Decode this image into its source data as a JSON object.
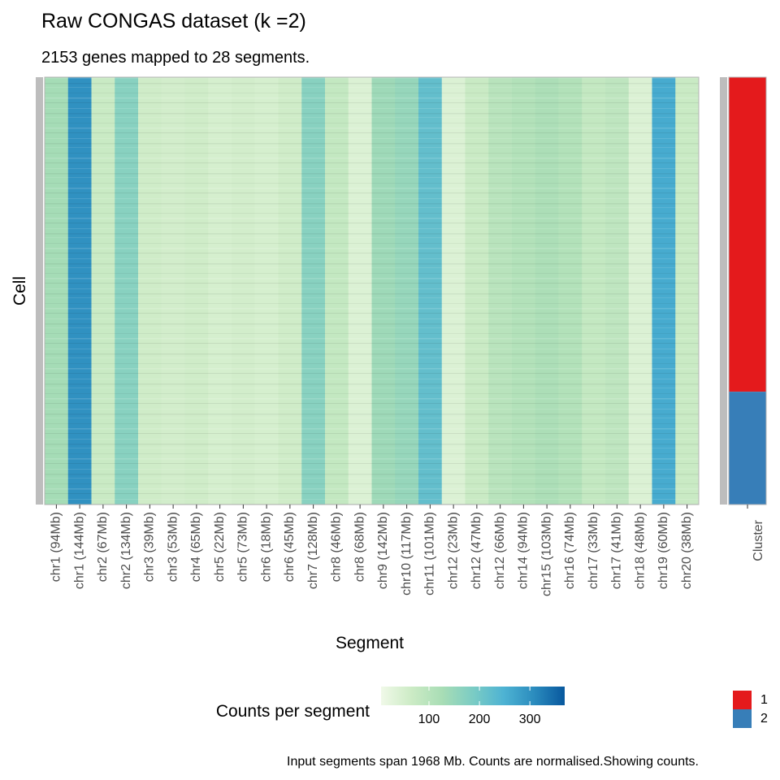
{
  "chart_data": {
    "type": "heatmap",
    "title": "Raw CONGAS dataset (k =2)",
    "subtitle": "2153 genes mapped to 28 segments.",
    "x_label": "Segment",
    "y_label": "Cell",
    "caption": "Input segments span 1968 Mb. Counts are normalised.Showing counts.",
    "categories": [
      "chr1 (94Mb)",
      "chr1 (144Mb)",
      "chr2 (67Mb)",
      "chr2 (134Mb)",
      "chr3 (39Mb)",
      "chr3 (53Mb)",
      "chr4 (65Mb)",
      "chr5 (22Mb)",
      "chr5 (73Mb)",
      "chr6 (18Mb)",
      "chr6 (45Mb)",
      "chr7 (128Mb)",
      "chr8 (46Mb)",
      "chr8 (68Mb)",
      "chr9 (142Mb)",
      "chr10 (117Mb)",
      "chr11 (101Mb)",
      "chr12 (23Mb)",
      "chr12 (47Mb)",
      "chr12 (66Mb)",
      "chr14 (94Mb)",
      "chr15 (103Mb)",
      "chr16 (74Mb)",
      "chr17 (33Mb)",
      "chr17 (41Mb)",
      "chr18 (48Mb)",
      "chr19 (60Mb)",
      "chr20 (38Mb)"
    ],
    "values": [
      130,
      300,
      70,
      170,
      60,
      55,
      60,
      50,
      55,
      50,
      60,
      170,
      80,
      40,
      140,
      150,
      220,
      40,
      70,
      100,
      110,
      120,
      110,
      80,
      90,
      40,
      260,
      70
    ],
    "colorbar": {
      "title": "Counts per segment",
      "lim": [
        5,
        369
      ],
      "ticks": [
        100,
        200,
        300
      ],
      "colors": [
        "#f0f9e8",
        "#ccebc5",
        "#a8ddb5",
        "#7bccc4",
        "#4eb3d3",
        "#2b8cbe",
        "#08589e"
      ]
    },
    "cluster": {
      "label": "Cluster",
      "names": [
        "1",
        "2"
      ],
      "colors": [
        "#e41a1c",
        "#377eb8"
      ],
      "share": [
        73.6,
        26.4
      ]
    }
  }
}
